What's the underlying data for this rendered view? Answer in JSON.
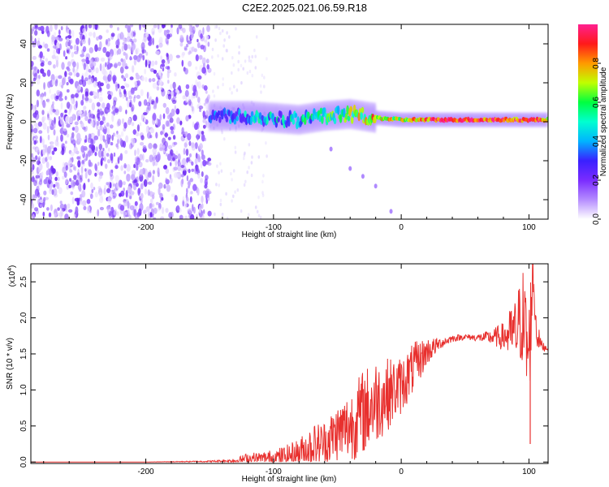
{
  "title": "C2E2.2025.021.06.59.R18",
  "colors": {
    "snr_line": "#e8302e",
    "frame": "#000000",
    "colormap": [
      "#ffffff",
      "#b58cff",
      "#7a2cff",
      "#3a20ff",
      "#00b4ff",
      "#00ffd0",
      "#00ff40",
      "#c0ff00",
      "#ff9a00",
      "#ff1a1a",
      "#ff2090"
    ]
  },
  "chart_data": [
    {
      "type": "heatmap",
      "xlabel": "Height of straight line (km)",
      "ylabel": "Frequency (Hz)",
      "xlim": [
        -290,
        115
      ],
      "ylim": [
        -50,
        50
      ],
      "xticks": [
        {
          "value": -200,
          "label": "-200"
        },
        {
          "value": -100,
          "label": "-100"
        },
        {
          "value": 0,
          "label": "0"
        },
        {
          "value": 100,
          "label": "100"
        }
      ],
      "yticks": [
        {
          "value": -40,
          "label": "-40"
        },
        {
          "value": -20,
          "label": "-20"
        },
        {
          "value": 0,
          "label": "0"
        },
        {
          "value": 20,
          "label": "20"
        },
        {
          "value": 40,
          "label": "40"
        }
      ],
      "colorbar": {
        "label": "Normalized spectral amplitude",
        "range": [
          0,
          1
        ],
        "ticks": [
          {
            "value": 0.0,
            "label": "0.0"
          },
          {
            "value": 0.2,
            "label": "0.2"
          },
          {
            "value": 0.4,
            "label": "0.4"
          },
          {
            "value": 0.6,
            "label": "0.6"
          },
          {
            "value": 0.8,
            "label": "0.8"
          }
        ]
      },
      "noise_region_x": [
        -290,
        -150
      ],
      "ridge": {
        "x": [
          -150,
          -120,
          -100,
          -80,
          -60,
          -40,
          -20,
          0,
          20,
          50,
          80,
          100,
          115
        ],
        "freq": [
          3,
          3,
          2,
          1,
          3,
          4,
          2,
          1,
          1,
          1,
          1,
          1,
          1
        ],
        "amplitude": [
          0.3,
          0.35,
          0.4,
          0.45,
          0.5,
          0.6,
          0.75,
          0.65,
          0.85,
          0.9,
          0.9,
          0.85,
          0.8
        ]
      }
    },
    {
      "type": "line",
      "xlabel": "Height of straight line (km)",
      "ylabel": "SNR (10 * v/v)",
      "y_multiplier": "(x10",
      "y_multiplier_exp": "4",
      "xlim": [
        -290,
        115
      ],
      "ylim": [
        -0.02,
        2.75
      ],
      "xticks": [
        {
          "value": -200,
          "label": "-200"
        },
        {
          "value": -100,
          "label": "-100"
        },
        {
          "value": 0,
          "label": "0"
        },
        {
          "value": 100,
          "label": "100"
        }
      ],
      "yticks": [
        {
          "value": 0.0,
          "label": "0.0"
        },
        {
          "value": 0.5,
          "label": "0.5"
        },
        {
          "value": 1.0,
          "label": "1.0"
        },
        {
          "value": 1.5,
          "label": "1.5"
        },
        {
          "value": 2.0,
          "label": "2.0"
        },
        {
          "value": 2.5,
          "label": "2.5"
        }
      ],
      "series": [
        {
          "x": [
            -290,
            -250,
            -200,
            -150,
            -130,
            -120,
            -110,
            -100,
            -90,
            -80,
            -70,
            -60,
            -50,
            -40,
            -30,
            -20,
            -10,
            0,
            10,
            20,
            30,
            40,
            50,
            60,
            70,
            80,
            90,
            95,
            100,
            103,
            106,
            110,
            115
          ],
          "y": [
            0.0,
            0.0,
            0.0,
            0.01,
            0.02,
            0.06,
            0.05,
            0.07,
            0.1,
            0.15,
            0.25,
            0.3,
            0.45,
            0.55,
            0.75,
            0.9,
            1.0,
            1.1,
            1.35,
            1.55,
            1.65,
            1.72,
            1.74,
            1.73,
            1.74,
            1.76,
            1.85,
            2.1,
            1.5,
            2.7,
            1.8,
            1.62,
            1.58
          ],
          "spread": [
            0.0,
            0.0,
            0.0,
            0.01,
            0.03,
            0.08,
            0.1,
            0.12,
            0.15,
            0.2,
            0.3,
            0.32,
            0.4,
            0.5,
            0.6,
            0.6,
            0.5,
            0.4,
            0.35,
            0.2,
            0.08,
            0.05,
            0.04,
            0.05,
            0.1,
            0.2,
            0.5,
            0.7,
            0.9,
            0.4,
            0.2,
            0.08,
            0.04
          ]
        }
      ]
    }
  ]
}
